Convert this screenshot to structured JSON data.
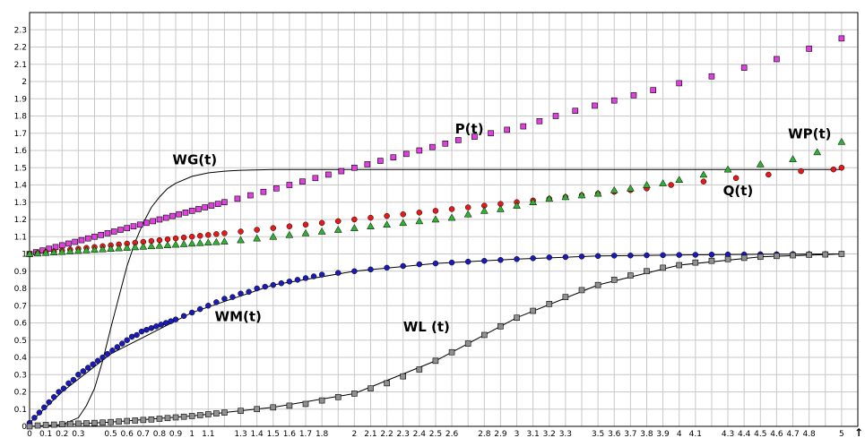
{
  "chart_data": {
    "type": "scatter",
    "title": "",
    "xlabel": "",
    "ylabel": "",
    "xlim": [
      0,
      5.1
    ],
    "ylim": [
      0,
      2.4
    ],
    "grid": true,
    "legend": "none",
    "x_tick_labels": [
      "0",
      "0.1",
      "0.2",
      "0.3",
      "0.5",
      "0.6",
      "0.7",
      "0.8",
      "0.9",
      "1",
      "1.1",
      "1.3",
      "1.4",
      "1.5",
      "1.6",
      "1.7",
      "1.8",
      "2",
      "2.1",
      "2.2",
      "2.3",
      "2.4",
      "2.5",
      "2.6",
      "2.8",
      "2.9",
      "3",
      "3.1",
      "3.2",
      "3.3",
      "3.5",
      "3.6",
      "3.7",
      "3.8",
      "3.9",
      "4",
      "4.1",
      "4.3",
      "4.4",
      "4.5",
      "4.6",
      "4.7",
      "4.8",
      "5"
    ],
    "x_axis_marker": "↑",
    "y_tick_labels": [
      "0",
      "0.1",
      "0.2",
      "0.3",
      "0.4",
      "0.5",
      "0.6",
      "0.7",
      "0.8",
      "0.9",
      "1",
      "1.1",
      "1.2",
      "1.3",
      "1.4",
      "1.5",
      "1.6",
      "1.7",
      "1.8",
      "1.9",
      "2",
      "2.1",
      "2.2",
      "2.3"
    ],
    "series": [
      {
        "name": "P(t)",
        "marker": "square",
        "color": "#e040e0",
        "x": [
          0,
          0.04,
          0.08,
          0.12,
          0.16,
          0.2,
          0.24,
          0.28,
          0.32,
          0.36,
          0.4,
          0.44,
          0.48,
          0.52,
          0.56,
          0.6,
          0.64,
          0.68,
          0.72,
          0.76,
          0.8,
          0.84,
          0.88,
          0.92,
          0.96,
          1.0,
          1.04,
          1.08,
          1.12,
          1.16,
          1.2,
          1.28,
          1.36,
          1.44,
          1.52,
          1.6,
          1.68,
          1.76,
          1.84,
          1.92,
          2.0,
          2.08,
          2.16,
          2.24,
          2.32,
          2.4,
          2.48,
          2.56,
          2.64,
          2.74,
          2.84,
          2.94,
          3.04,
          3.14,
          3.24,
          3.36,
          3.48,
          3.6,
          3.72,
          3.84,
          4.0,
          4.2,
          4.4,
          4.6,
          4.8,
          5.0
        ],
        "y": [
          1.0,
          1.01,
          1.02,
          1.03,
          1.04,
          1.05,
          1.06,
          1.07,
          1.08,
          1.09,
          1.1,
          1.11,
          1.12,
          1.13,
          1.14,
          1.15,
          1.16,
          1.17,
          1.18,
          1.19,
          1.2,
          1.21,
          1.22,
          1.23,
          1.24,
          1.25,
          1.26,
          1.27,
          1.28,
          1.29,
          1.3,
          1.32,
          1.34,
          1.36,
          1.38,
          1.4,
          1.42,
          1.44,
          1.46,
          1.48,
          1.5,
          1.52,
          1.54,
          1.56,
          1.58,
          1.6,
          1.62,
          1.64,
          1.66,
          1.68,
          1.7,
          1.72,
          1.74,
          1.77,
          1.8,
          1.83,
          1.86,
          1.89,
          1.92,
          1.95,
          1.99,
          2.03,
          2.08,
          2.13,
          2.19,
          2.25
        ]
      },
      {
        "name": "Q(t)",
        "marker": "circle",
        "color": "#e81818",
        "x": [
          0,
          0.05,
          0.1,
          0.15,
          0.2,
          0.25,
          0.3,
          0.35,
          0.4,
          0.45,
          0.5,
          0.55,
          0.6,
          0.65,
          0.7,
          0.75,
          0.8,
          0.85,
          0.9,
          0.95,
          1.0,
          1.05,
          1.1,
          1.15,
          1.2,
          1.3,
          1.4,
          1.5,
          1.6,
          1.7,
          1.8,
          1.9,
          2.0,
          2.1,
          2.2,
          2.3,
          2.4,
          2.5,
          2.6,
          2.7,
          2.8,
          2.9,
          3.0,
          3.1,
          3.2,
          3.3,
          3.4,
          3.5,
          3.6,
          3.7,
          3.8,
          3.95,
          4.15,
          4.35,
          4.55,
          4.75,
          4.95,
          5.0
        ],
        "y": [
          1.0,
          1.005,
          1.01,
          1.015,
          1.02,
          1.025,
          1.03,
          1.035,
          1.04,
          1.045,
          1.05,
          1.055,
          1.06,
          1.065,
          1.07,
          1.075,
          1.08,
          1.085,
          1.09,
          1.095,
          1.1,
          1.105,
          1.11,
          1.115,
          1.12,
          1.13,
          1.14,
          1.15,
          1.16,
          1.17,
          1.18,
          1.19,
          1.2,
          1.21,
          1.22,
          1.23,
          1.24,
          1.25,
          1.26,
          1.27,
          1.28,
          1.29,
          1.3,
          1.31,
          1.32,
          1.33,
          1.34,
          1.35,
          1.36,
          1.37,
          1.38,
          1.4,
          1.42,
          1.44,
          1.46,
          1.48,
          1.49,
          1.5
        ]
      },
      {
        "name": "WP(t)",
        "marker": "triangle",
        "color": "#30b030",
        "x": [
          0,
          0.05,
          0.1,
          0.15,
          0.2,
          0.25,
          0.3,
          0.35,
          0.4,
          0.45,
          0.5,
          0.55,
          0.6,
          0.65,
          0.7,
          0.75,
          0.8,
          0.85,
          0.9,
          0.95,
          1.0,
          1.05,
          1.1,
          1.15,
          1.2,
          1.3,
          1.4,
          1.5,
          1.6,
          1.7,
          1.8,
          1.9,
          2.0,
          2.1,
          2.2,
          2.3,
          2.4,
          2.5,
          2.6,
          2.7,
          2.8,
          2.9,
          3.0,
          3.1,
          3.2,
          3.3,
          3.4,
          3.5,
          3.6,
          3.7,
          3.8,
          3.9,
          4.0,
          4.15,
          4.3,
          4.5,
          4.7,
          4.85,
          5.0
        ],
        "y": [
          1.0,
          1.003,
          1.006,
          1.009,
          1.012,
          1.015,
          1.018,
          1.021,
          1.024,
          1.027,
          1.03,
          1.033,
          1.036,
          1.039,
          1.042,
          1.045,
          1.048,
          1.051,
          1.054,
          1.057,
          1.06,
          1.063,
          1.066,
          1.069,
          1.072,
          1.08,
          1.09,
          1.1,
          1.11,
          1.12,
          1.13,
          1.14,
          1.15,
          1.16,
          1.17,
          1.18,
          1.19,
          1.2,
          1.21,
          1.23,
          1.25,
          1.26,
          1.28,
          1.3,
          1.32,
          1.33,
          1.34,
          1.35,
          1.37,
          1.38,
          1.4,
          1.41,
          1.43,
          1.46,
          1.49,
          1.52,
          1.55,
          1.59,
          1.65
        ]
      },
      {
        "name": "WM(t)",
        "marker": "circle",
        "color": "#1a1ab8",
        "x": [
          0,
          0.03,
          0.06,
          0.09,
          0.12,
          0.15,
          0.18,
          0.21,
          0.24,
          0.27,
          0.3,
          0.33,
          0.36,
          0.39,
          0.42,
          0.45,
          0.48,
          0.51,
          0.54,
          0.57,
          0.6,
          0.63,
          0.66,
          0.69,
          0.72,
          0.75,
          0.78,
          0.81,
          0.84,
          0.87,
          0.9,
          0.95,
          1.0,
          1.05,
          1.1,
          1.15,
          1.2,
          1.25,
          1.3,
          1.35,
          1.4,
          1.45,
          1.5,
          1.55,
          1.6,
          1.65,
          1.7,
          1.75,
          1.8,
          1.9,
          2.0,
          2.1,
          2.2,
          2.3,
          2.4,
          2.5,
          2.6,
          2.7,
          2.8,
          2.9,
          3.0,
          3.1,
          3.2,
          3.3,
          3.4,
          3.5,
          3.6,
          3.7,
          3.8,
          3.9,
          4.0,
          4.1,
          4.2,
          4.3,
          4.4,
          4.5,
          4.6,
          4.7,
          4.8,
          4.9,
          5.0
        ],
        "y": [
          0.02,
          0.05,
          0.08,
          0.11,
          0.14,
          0.17,
          0.2,
          0.22,
          0.25,
          0.27,
          0.3,
          0.32,
          0.34,
          0.36,
          0.38,
          0.4,
          0.42,
          0.44,
          0.46,
          0.48,
          0.5,
          0.52,
          0.53,
          0.55,
          0.56,
          0.57,
          0.58,
          0.59,
          0.6,
          0.61,
          0.62,
          0.64,
          0.66,
          0.68,
          0.7,
          0.72,
          0.74,
          0.75,
          0.77,
          0.78,
          0.8,
          0.81,
          0.82,
          0.83,
          0.84,
          0.85,
          0.86,
          0.87,
          0.88,
          0.89,
          0.9,
          0.91,
          0.92,
          0.93,
          0.94,
          0.945,
          0.95,
          0.955,
          0.96,
          0.965,
          0.97,
          0.975,
          0.98,
          0.982,
          0.985,
          0.988,
          0.99,
          0.991,
          0.992,
          0.993,
          0.994,
          0.995,
          0.996,
          0.997,
          0.997,
          0.998,
          0.998,
          0.999,
          0.999,
          0.999,
          1.0
        ]
      },
      {
        "name": "WL (t)",
        "marker": "square",
        "color": "#909090",
        "x": [
          0,
          0.05,
          0.1,
          0.15,
          0.2,
          0.25,
          0.3,
          0.35,
          0.4,
          0.45,
          0.5,
          0.55,
          0.6,
          0.65,
          0.7,
          0.75,
          0.8,
          0.85,
          0.9,
          0.95,
          1.0,
          1.05,
          1.1,
          1.15,
          1.2,
          1.3,
          1.4,
          1.5,
          1.6,
          1.7,
          1.8,
          1.9,
          2.0,
          2.1,
          2.2,
          2.3,
          2.4,
          2.5,
          2.6,
          2.7,
          2.8,
          2.9,
          3.0,
          3.1,
          3.2,
          3.3,
          3.4,
          3.5,
          3.6,
          3.7,
          3.8,
          3.9,
          4.0,
          4.1,
          4.2,
          4.3,
          4.4,
          4.5,
          4.6,
          4.7,
          4.8,
          4.9,
          5.0
        ],
        "y": [
          0.0,
          0.005,
          0.008,
          0.01,
          0.012,
          0.014,
          0.016,
          0.018,
          0.02,
          0.022,
          0.025,
          0.028,
          0.031,
          0.034,
          0.037,
          0.04,
          0.044,
          0.048,
          0.052,
          0.056,
          0.06,
          0.065,
          0.07,
          0.075,
          0.08,
          0.09,
          0.1,
          0.11,
          0.12,
          0.13,
          0.15,
          0.17,
          0.19,
          0.22,
          0.25,
          0.29,
          0.33,
          0.38,
          0.43,
          0.48,
          0.53,
          0.58,
          0.63,
          0.67,
          0.71,
          0.75,
          0.79,
          0.82,
          0.85,
          0.875,
          0.9,
          0.92,
          0.935,
          0.95,
          0.96,
          0.97,
          0.977,
          0.983,
          0.988,
          0.992,
          0.995,
          0.997,
          1.0
        ]
      }
    ],
    "curves": [
      {
        "name": "WG(t)",
        "style": "line",
        "color": "#000000",
        "x": [
          0,
          0.1,
          0.2,
          0.3,
          0.35,
          0.4,
          0.45,
          0.5,
          0.55,
          0.6,
          0.65,
          0.7,
          0.75,
          0.8,
          0.85,
          0.9,
          1.0,
          1.1,
          1.2,
          1.3,
          1.5,
          1.7,
          2.0,
          2.5,
          3.0,
          4.0,
          5.0
        ],
        "y": [
          0,
          0,
          0.01,
          0.05,
          0.12,
          0.22,
          0.38,
          0.57,
          0.75,
          0.93,
          1.07,
          1.18,
          1.27,
          1.33,
          1.38,
          1.41,
          1.45,
          1.47,
          1.48,
          1.485,
          1.49,
          1.49,
          1.49,
          1.49,
          1.49,
          1.49,
          1.49
        ]
      },
      {
        "name": "WM(t)",
        "style": "line",
        "color": "#000000",
        "x": [
          0,
          0.2,
          0.5,
          1.0,
          1.5,
          2.0,
          2.5,
          3.0,
          3.5,
          4.0,
          4.5,
          5.0
        ],
        "y": [
          0.02,
          0.2,
          0.42,
          0.66,
          0.82,
          0.9,
          0.945,
          0.97,
          0.988,
          0.994,
          0.998,
          1.0
        ]
      },
      {
        "name": "WL (t)",
        "style": "line",
        "color": "#000000",
        "x": [
          0,
          0.5,
          1.0,
          1.5,
          2.0,
          2.5,
          3.0,
          3.5,
          4.0,
          4.5,
          5.0
        ],
        "y": [
          0,
          0.025,
          0.06,
          0.11,
          0.19,
          0.38,
          0.63,
          0.82,
          0.935,
          0.983,
          1.0
        ]
      }
    ],
    "annotations": [
      {
        "text": "P(t)",
        "x": 2.62,
        "y": 1.7
      },
      {
        "text": "WP(t)",
        "x": 4.67,
        "y": 1.67
      },
      {
        "text": "WG(t)",
        "x": 0.88,
        "y": 1.52
      },
      {
        "text": "Q(t)",
        "x": 4.27,
        "y": 1.34
      },
      {
        "text": "WM(t)",
        "x": 1.14,
        "y": 0.61
      },
      {
        "text": "WL (t)",
        "x": 2.3,
        "y": 0.55
      }
    ]
  }
}
